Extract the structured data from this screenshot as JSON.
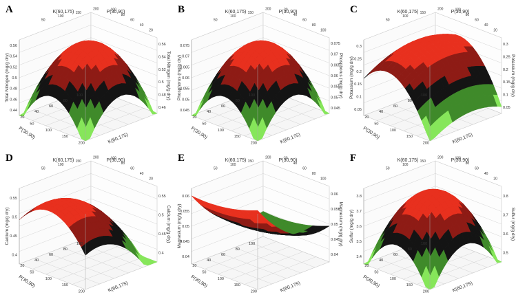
{
  "colors": {
    "red": "#e8301e",
    "darkred": "#8e1b15",
    "black": "#141414",
    "green": "#3f8a2a",
    "lightgreen": "#86e65a",
    "grid": "#c9c9c9"
  },
  "chart_data": [
    {
      "type": "surface3d",
      "letter": "A",
      "zlabel": "Total Nitrogen (mg/g dry)",
      "p_label": "P(30,90)",
      "k_label": "K(60,175)",
      "p_ticks": [
        "20",
        "40",
        "60",
        "80",
        "100"
      ],
      "k_ticks": [
        "50",
        "100",
        "150",
        "200"
      ],
      "z_ticks_left": [
        "0.44",
        "0.46",
        "0.48",
        "0.5",
        "0.52",
        "0.54",
        "0.56"
      ],
      "z_ticks_right": [
        "0.46",
        "0.48",
        "0.5",
        "0.52",
        "0.54",
        "0.56"
      ],
      "top_k_ticks": [
        "50",
        "100",
        "150",
        "200"
      ],
      "top_p_ticks": [
        "100",
        "80",
        "60",
        "40",
        "20"
      ]
    },
    {
      "type": "surface3d",
      "letter": "B",
      "zlabel": "Phosphorus (mg/g dry)",
      "p_label": "P(30,90)",
      "k_label": "K(60,175)",
      "p_ticks": [
        "20",
        "40",
        "60",
        "80",
        "100"
      ],
      "k_ticks": [
        "50",
        "100",
        "150",
        "200"
      ],
      "z_ticks_left": [
        "0.045",
        "0.05",
        "0.055",
        "0.06",
        "0.065",
        "0.07",
        "0.075"
      ],
      "z_ticks_right": [
        "0.045",
        "0.05",
        "0.055",
        "0.06",
        "0.065",
        "0.07",
        "0.075"
      ],
      "top_k_ticks": [
        "50",
        "100",
        "150",
        "200"
      ],
      "top_p_ticks": [
        "20",
        "40",
        "60",
        "80",
        "100"
      ]
    },
    {
      "type": "surface3d",
      "letter": "C",
      "zlabel": "Potassium (mg/g dry)",
      "p_label": "P(30,90)",
      "k_label": "K(60,175)",
      "p_ticks": [
        "20",
        "40",
        "60",
        "80",
        "100"
      ],
      "k_ticks": [
        "50",
        "100",
        "150",
        "200"
      ],
      "z_ticks_left": [
        "0.05",
        "0.1",
        "0.15",
        "0.2",
        "0.25",
        "0.3"
      ],
      "z_ticks_right": [
        "0.05",
        "0.1",
        "0.15",
        "0.2",
        "0.25",
        "0.3"
      ],
      "top_k_ticks": [
        "50",
        "100",
        "150",
        "200"
      ],
      "top_p_ticks": [
        "100",
        "80",
        "60",
        "40",
        "20"
      ]
    },
    {
      "type": "surface3d",
      "letter": "D",
      "zlabel": "Calcium (mg/g dry)",
      "p_label": "P(30,90)",
      "k_label": "K(60,175)",
      "p_ticks": [
        "20",
        "40",
        "60",
        "80",
        "100"
      ],
      "k_ticks": [
        "50",
        "100",
        "150",
        "200"
      ],
      "z_ticks_left": [
        "0.4",
        "0.45",
        "0.5",
        "0.55"
      ],
      "z_ticks_right": [
        "0.4",
        "0.45",
        "0.5",
        "0.55"
      ],
      "top_k_ticks": [
        "50",
        "100",
        "150",
        "200"
      ],
      "top_p_ticks": [
        "100",
        "80",
        "60",
        "40",
        "20"
      ]
    },
    {
      "type": "surface3d",
      "letter": "E",
      "zlabel": "Magnesium (mg/g dry)",
      "p_label": "P(30,90)",
      "k_label": "K(60,175)",
      "p_ticks": [
        "20",
        "40",
        "60",
        "80",
        "100"
      ],
      "k_ticks": [
        "50",
        "100",
        "150",
        "200"
      ],
      "z_ticks_left": [
        "0.04",
        "0.045",
        "0.05",
        "0.055",
        "0.06"
      ],
      "z_ticks_right": [
        "0.04",
        "0.045",
        "0.05",
        "0.055",
        "0.06"
      ],
      "top_k_ticks": [
        "50",
        "100",
        "150",
        "200"
      ],
      "top_p_ticks": [
        "20",
        "40",
        "60",
        "80",
        "100"
      ]
    },
    {
      "type": "surface3d",
      "letter": "F",
      "zlabel": "Sulfur (mg/g dry)",
      "p_label": "P(30,90)",
      "k_label": "K(60,175)",
      "p_ticks": [
        "20",
        "40",
        "60",
        "80",
        "100"
      ],
      "k_ticks": [
        "50",
        "100",
        "150",
        "200"
      ],
      "z_ticks_left": [
        "3.4",
        "3.5",
        "3.6",
        "3.7",
        "3.8"
      ],
      "z_ticks_right": [
        "3.5",
        "3.6",
        "3.7",
        "3.8"
      ],
      "top_k_ticks": [
        "50",
        "100",
        "150",
        "200"
      ],
      "top_p_ticks": [
        "100",
        "80",
        "60",
        "40",
        "20"
      ]
    }
  ]
}
